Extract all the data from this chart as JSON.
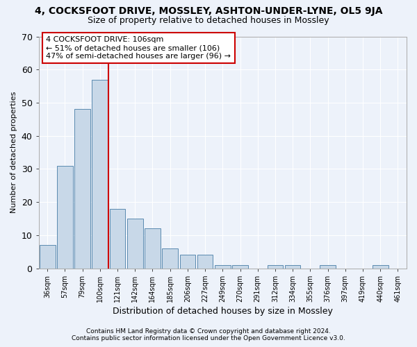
{
  "title_top": "4, COCKSFOOT DRIVE, MOSSLEY, ASHTON-UNDER-LYNE, OL5 9JA",
  "title_sub": "Size of property relative to detached houses in Mossley",
  "xlabel": "Distribution of detached houses by size in Mossley",
  "ylabel": "Number of detached properties",
  "bins": [
    "36sqm",
    "57sqm",
    "79sqm",
    "100sqm",
    "121sqm",
    "142sqm",
    "164sqm",
    "185sqm",
    "206sqm",
    "227sqm",
    "249sqm",
    "270sqm",
    "291sqm",
    "312sqm",
    "334sqm",
    "355sqm",
    "376sqm",
    "397sqm",
    "419sqm",
    "440sqm",
    "461sqm"
  ],
  "values": [
    7,
    31,
    48,
    57,
    18,
    15,
    12,
    6,
    4,
    4,
    1,
    1,
    0,
    1,
    1,
    0,
    1,
    0,
    0,
    1,
    0
  ],
  "highlight_bin": 3,
  "bar_color": "#c8d8e8",
  "bar_edge_color": "#5a8ab0",
  "highlight_line_color": "#cc0000",
  "background_color": "#edf2fa",
  "grid_color": "#ffffff",
  "annotation_text": "4 COCKSFOOT DRIVE: 106sqm\n← 51% of detached houses are smaller (106)\n47% of semi-detached houses are larger (96) →",
  "annotation_box_color": "#ffffff",
  "annotation_box_edge": "#cc0000",
  "ylim": [
    0,
    70
  ],
  "yticks": [
    0,
    10,
    20,
    30,
    40,
    50,
    60,
    70
  ],
  "footer1": "Contains HM Land Registry data © Crown copyright and database right 2024.",
  "footer2": "Contains public sector information licensed under the Open Government Licence v3.0."
}
